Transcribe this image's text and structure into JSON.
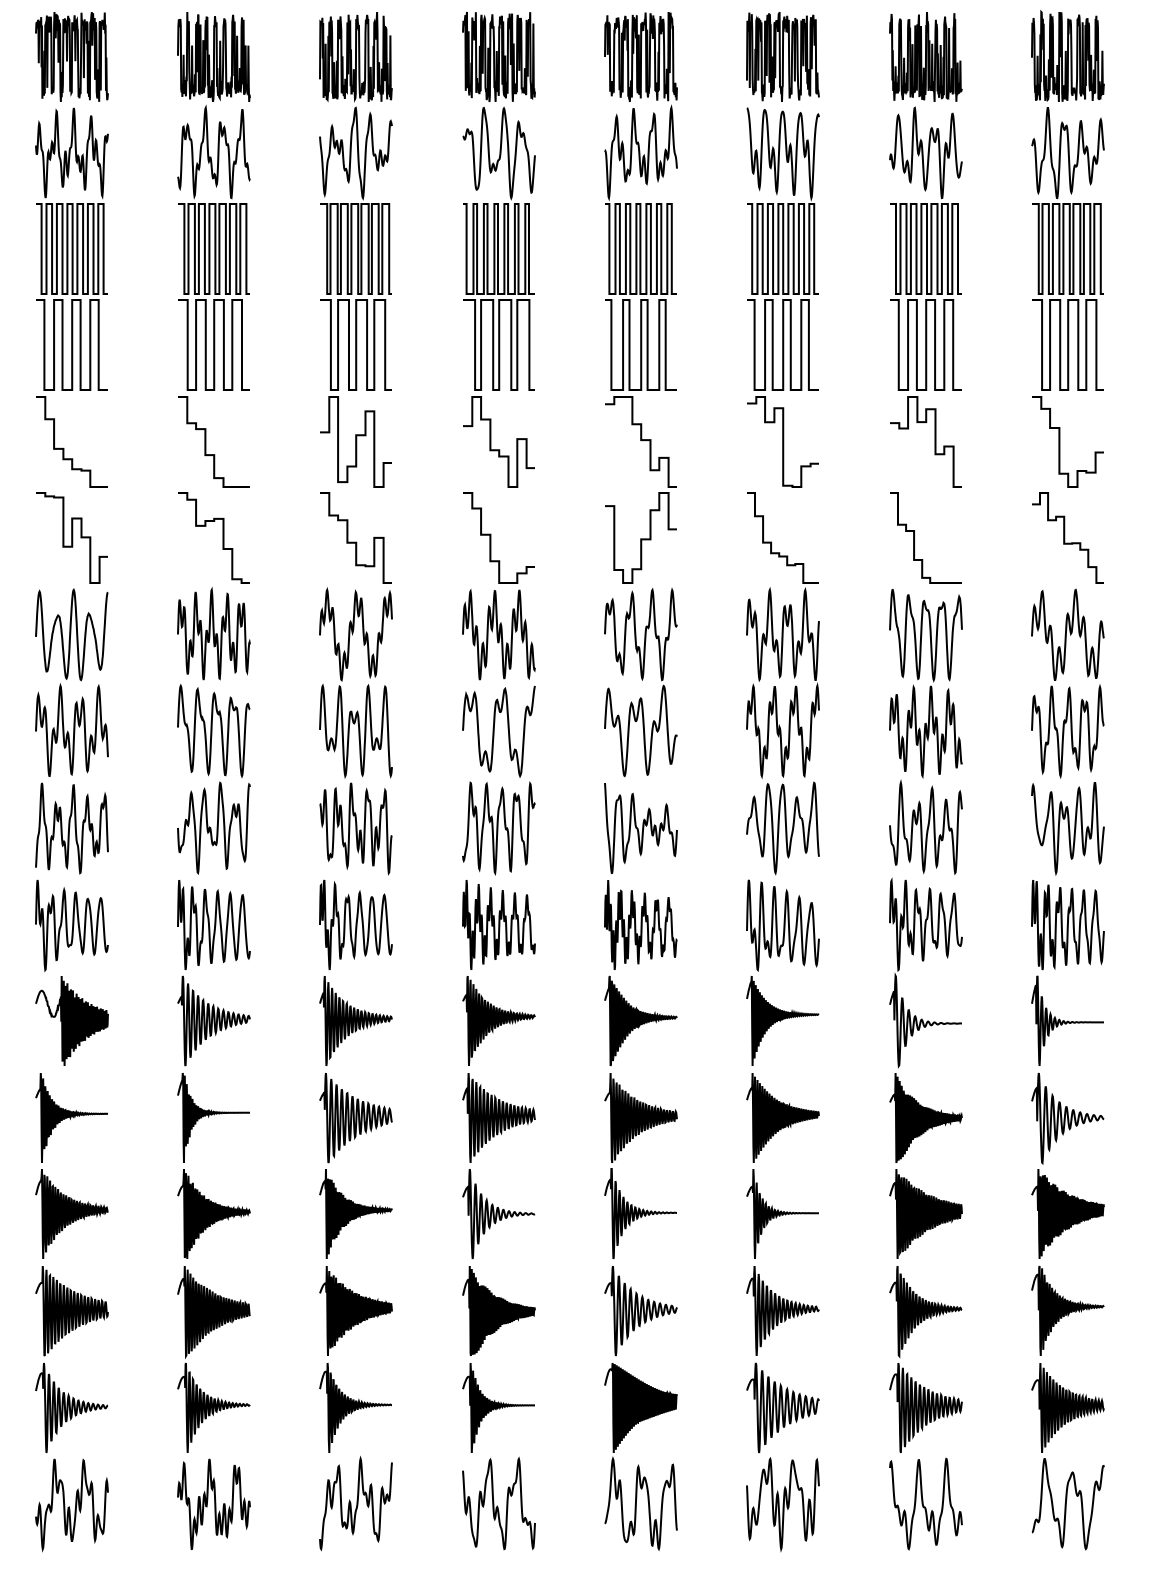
{
  "figure": {
    "type": "waveform-thumbnail-grid",
    "rows": 16,
    "columns": 8,
    "background_color": "#ffffff",
    "stroke_color": "#000000",
    "row_families": [
      "pulse-wave-dense",
      "multi-sine-wiggle",
      "square-wave-dense",
      "square-wave-gapped",
      "stepped-descending",
      "stepped-descending",
      "stepped-and-sawtooth",
      "stepped-and-wiggle",
      "multi-sine-wiggle",
      "multi-sine-and-decaying",
      "decaying-oscillation",
      "decaying-oscillation",
      "decaying-oscillation",
      "decaying-oscillation",
      "decaying-oscillation",
      "multi-sine-wiggle"
    ]
  }
}
